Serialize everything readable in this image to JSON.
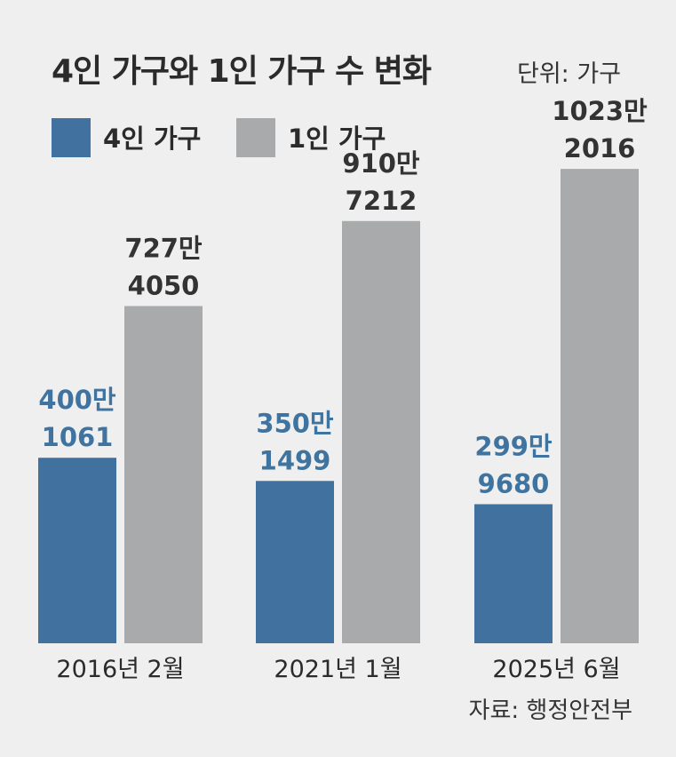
{
  "chart_data": {
    "type": "bar",
    "title": "4인 가구와 1인 가구 수 변화",
    "unit_label": "단위: 가구",
    "categories": [
      "2016년 2월",
      "2021년 1월",
      "2025년 6월"
    ],
    "series": [
      {
        "name": "4인 가구",
        "color": "#41729f",
        "values": [
          4001061,
          3501499,
          2999680
        ],
        "labels": [
          [
            "400만",
            "1061"
          ],
          [
            "350만",
            "1499"
          ],
          [
            "299만",
            "9680"
          ]
        ]
      },
      {
        "name": "1인 가구",
        "color": "#a9aaac",
        "values": [
          7274050,
          9107212,
          10232016
        ],
        "labels": [
          [
            "727만",
            "4050"
          ],
          [
            "910만",
            "7212"
          ],
          [
            "1023만",
            "2016"
          ]
        ]
      }
    ],
    "ylim": [
      0,
      11000000
    ],
    "legend_position": "top-left",
    "grid": false,
    "source": "자료: 행정안전부"
  }
}
